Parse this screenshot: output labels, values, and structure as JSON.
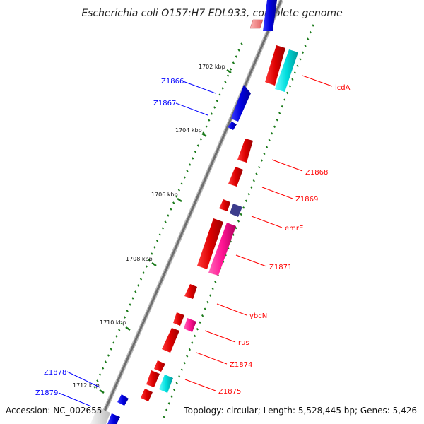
{
  "title": "Escherichia coli O157:H7 EDL933, complete genome",
  "footer": {
    "accession": "Accession: NC_002655",
    "info": "Topology: circular; Length: 5,528,445 bp; Genes: 5,426"
  },
  "scale_labels": [
    "1702 kbp",
    "1704 kbp",
    "1706 kbp",
    "1708 kbp",
    "1710 kbp",
    "1712 kbp"
  ],
  "gene_labels": {
    "icdA": "icdA",
    "Z1866": "Z1866",
    "Z1867": "Z1867",
    "Z1868": "Z1868",
    "Z1869": "Z1869",
    "emrE": "emrE",
    "Z1871": "Z1871",
    "ybcN": "ybcN",
    "rus": "rus",
    "Z1874": "Z1874",
    "Z1875": "Z1875",
    "Z1878": "Z1878",
    "Z1879": "Z1879"
  },
  "colors": {
    "forward_gene": "#ff0000",
    "reverse_gene": "#0000ff",
    "cyan_feature": "#00e5e5",
    "magenta_feature": "#ff1493",
    "navy_feature": "#3c3c8c",
    "backbone": "#8a8a8a",
    "tick": "#1a7a1a"
  }
}
